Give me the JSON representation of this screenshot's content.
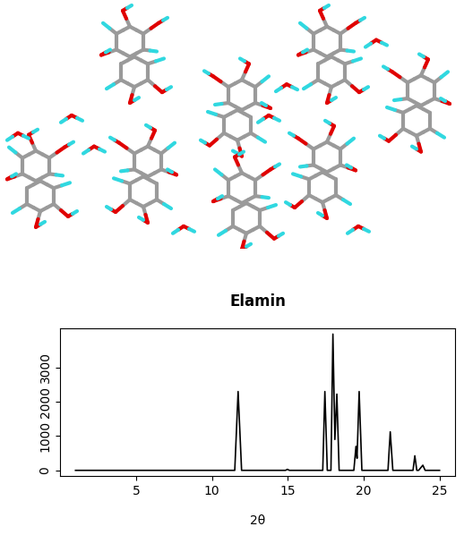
{
  "chart_data": {
    "type": "line",
    "title": "Elamin",
    "x_label": "2θ",
    "color": "#000000",
    "x": [
      1,
      11.5,
      11.72,
      11.95,
      14.85,
      14.97,
      15.1,
      17.3,
      17.44,
      17.6,
      17.84,
      17.97,
      18.1,
      18.23,
      18.38,
      19.35,
      19.49,
      19.56,
      19.7,
      19.88,
      21.6,
      21.75,
      21.92,
      23.25,
      23.37,
      23.5,
      23.62,
      23.9,
      24.05,
      25
    ],
    "values": [
      0,
      0,
      2300,
      0,
      0,
      30,
      0,
      0,
      2300,
      0,
      0,
      3975,
      900,
      2225,
      0,
      0,
      700,
      350,
      2300,
      0,
      0,
      1125,
      0,
      0,
      425,
      0,
      0,
      150,
      0,
      0
    ],
    "xlim": [
      0,
      26
    ],
    "ylim": [
      -160,
      4140
    ],
    "xticks": [
      5,
      10,
      15,
      20,
      25
    ],
    "yticks": [
      0,
      1000,
      2000,
      3000
    ]
  }
}
